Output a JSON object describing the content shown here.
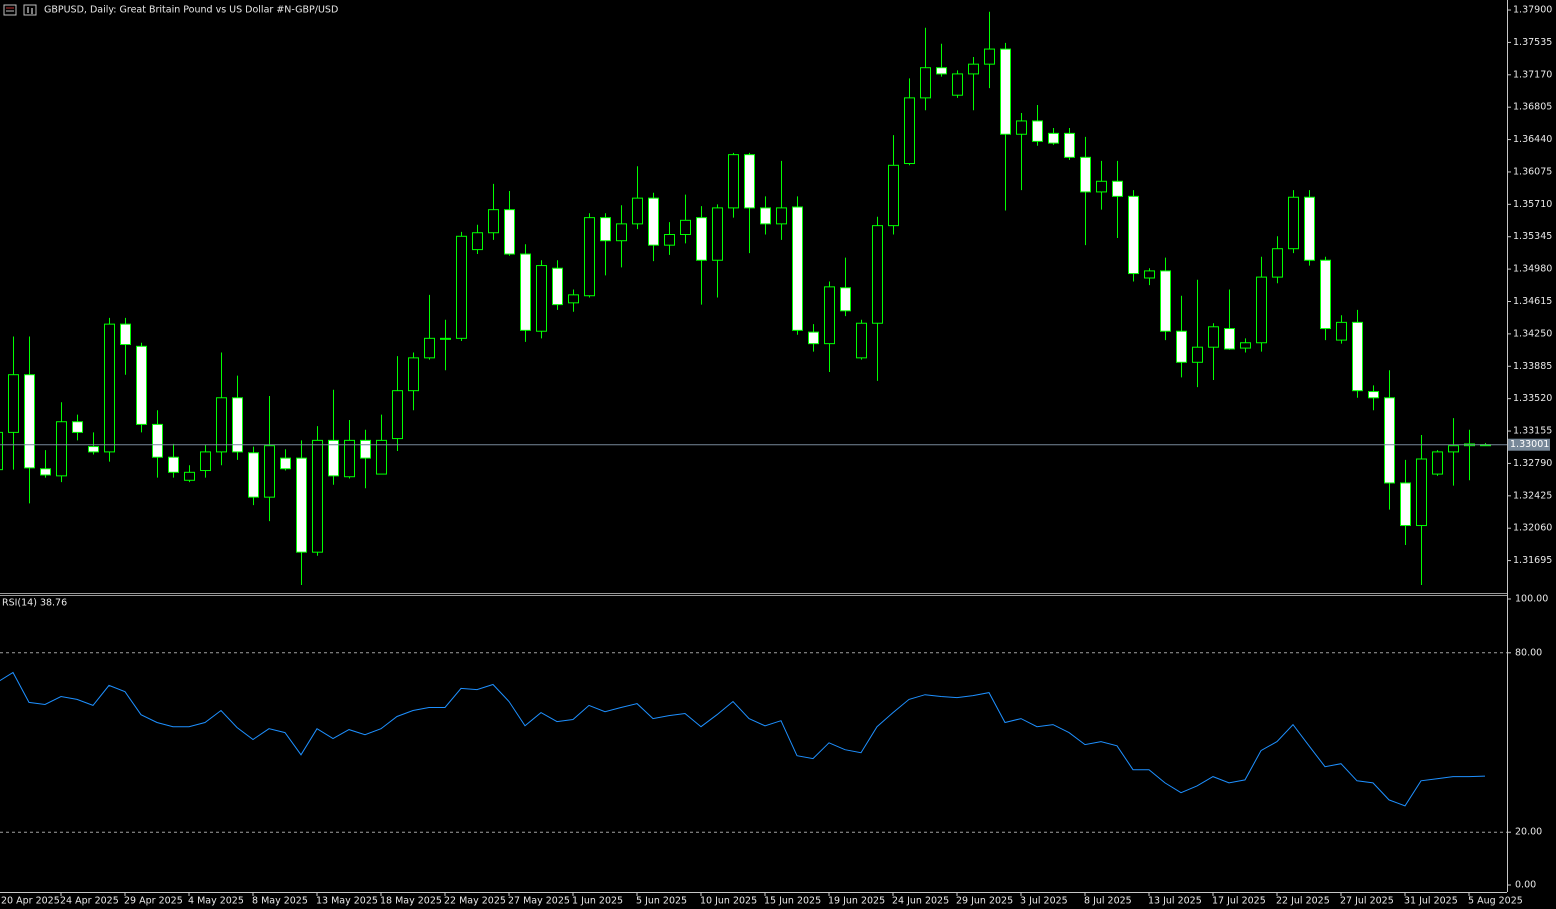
{
  "chart_data": [
    {
      "type": "candlestick",
      "title": "GBPUSD, Daily:  Great Britain Pound vs US Dollar #N-GBP/USD",
      "categories": [
        "20 Apr 2025",
        null,
        null,
        null,
        "24 Apr 2025",
        null,
        null,
        null,
        "29 Apr 2025",
        null,
        null,
        null,
        "4 May 2025",
        null,
        null,
        null,
        "8 May 2025",
        null,
        null,
        null,
        "13 May 2025",
        null,
        null,
        null,
        "18 May 2025",
        null,
        null,
        null,
        "22 May 2025",
        null,
        null,
        null,
        "27 May 2025",
        null,
        null,
        null,
        "1 Jun 2025",
        null,
        null,
        null,
        "5 Jun 2025",
        null,
        null,
        null,
        "10 Jun 2025",
        null,
        null,
        null,
        "15 Jun 2025",
        null,
        null,
        null,
        "19 Jun 2025",
        null,
        null,
        null,
        "24 Jun 2025",
        null,
        null,
        null,
        "29 Jun 2025",
        null,
        null,
        null,
        "3 Jul 2025",
        null,
        null,
        null,
        "8 Jul 2025",
        null,
        null,
        null,
        "13 Jul 2025",
        null,
        null,
        null,
        "17 Jul 2025",
        null,
        null,
        null,
        "22 Jul 2025",
        null,
        null,
        null,
        "27 Jul 2025",
        null,
        null,
        null,
        "31 Jul 2025",
        null,
        null,
        null,
        "5 Aug 2025",
        null
      ],
      "open": [
        1.3272,
        1.3314,
        1.3379,
        1.3273,
        1.3265,
        1.3326,
        1.3298,
        1.3292,
        1.3436,
        1.3411,
        1.3323,
        1.3286,
        1.326,
        1.3271,
        1.3292,
        1.3353,
        1.3291,
        1.3241,
        1.3285,
        1.3285,
        1.3179,
        1.3305,
        1.3264,
        1.3305,
        1.3267,
        1.3307,
        1.3361,
        1.3398,
        1.3419,
        1.342,
        1.352,
        1.3539,
        1.3565,
        1.3515,
        1.3428,
        1.3499,
        1.346,
        1.3468,
        1.3556,
        1.353,
        1.3549,
        1.3578,
        1.3525,
        1.3537,
        1.3556,
        1.3508,
        1.3567,
        1.3627,
        1.3567,
        1.3549,
        1.3568,
        1.3427,
        1.3414,
        1.3477,
        1.3398,
        1.3437,
        1.3547,
        1.3617,
        1.3691,
        1.3725,
        1.3694,
        1.3718,
        1.3729,
        1.3746,
        1.365,
        1.3665,
        1.3651,
        1.3651,
        1.3624,
        1.3585,
        1.3597,
        1.358,
        1.3488,
        1.3496,
        1.3428,
        1.3393,
        1.341,
        1.3431,
        1.3409,
        1.3415,
        1.3489,
        1.3521,
        1.3579,
        1.3508,
        1.3418,
        1.3438,
        1.336,
        1.3353,
        1.3257,
        1.3209,
        1.3267,
        1.3292,
        1.3299,
        1.33
      ],
      "high": [
        1.3328,
        1.3422,
        1.3422,
        1.3294,
        1.3348,
        1.3334,
        1.3314,
        1.3443,
        1.3443,
        1.3415,
        1.3339,
        1.3301,
        1.3277,
        1.33,
        1.3404,
        1.3378,
        1.3298,
        1.3355,
        1.3295,
        1.3305,
        1.3321,
        1.3362,
        1.3328,
        1.3317,
        1.3334,
        1.34,
        1.3404,
        1.3469,
        1.3441,
        1.354,
        1.3548,
        1.3594,
        1.3586,
        1.3526,
        1.3508,
        1.3508,
        1.3475,
        1.3561,
        1.3561,
        1.357,
        1.3614,
        1.3584,
        1.3551,
        1.3582,
        1.3569,
        1.3571,
        1.3629,
        1.3629,
        1.358,
        1.362,
        1.358,
        1.3436,
        1.3484,
        1.3511,
        1.3441,
        1.3557,
        1.3649,
        1.3713,
        1.377,
        1.3752,
        1.3722,
        1.3737,
        1.3788,
        1.3753,
        1.3674,
        1.3683,
        1.3657,
        1.3657,
        1.3647,
        1.362,
        1.362,
        1.3587,
        1.3499,
        1.3511,
        1.3468,
        1.3486,
        1.3437,
        1.3475,
        1.342,
        1.3512,
        1.3535,
        1.3587,
        1.3587,
        1.3512,
        1.3446,
        1.3452,
        1.3367,
        1.3384,
        1.3283,
        1.3311,
        1.3294,
        1.333,
        1.3317,
        1.3302
      ],
      "low": [
        1.3263,
        1.3272,
        1.3234,
        1.3263,
        1.3258,
        1.3305,
        1.3289,
        1.3281,
        1.3379,
        1.3314,
        1.3263,
        1.3263,
        1.3258,
        1.3263,
        1.3277,
        1.3283,
        1.3232,
        1.3214,
        1.3271,
        1.3142,
        1.3175,
        1.3255,
        1.3262,
        1.3251,
        1.3267,
        1.3293,
        1.3339,
        1.3396,
        1.3384,
        1.3417,
        1.3515,
        1.3531,
        1.3513,
        1.3416,
        1.342,
        1.3452,
        1.345,
        1.3466,
        1.3491,
        1.35,
        1.3543,
        1.3507,
        1.3514,
        1.3527,
        1.3458,
        1.3466,
        1.3556,
        1.3516,
        1.3537,
        1.3531,
        1.3424,
        1.3405,
        1.3382,
        1.3445,
        1.3396,
        1.3372,
        1.3537,
        1.3615,
        1.3677,
        1.3715,
        1.3691,
        1.3677,
        1.3702,
        1.3564,
        1.3587,
        1.3637,
        1.3638,
        1.3621,
        1.3525,
        1.3565,
        1.3533,
        1.3484,
        1.348,
        1.3418,
        1.3376,
        1.3365,
        1.3373,
        1.3407,
        1.3404,
        1.3405,
        1.3482,
        1.3516,
        1.3502,
        1.3418,
        1.3414,
        1.3353,
        1.3339,
        1.3227,
        1.3187,
        1.3142,
        1.3265,
        1.3254,
        1.326,
        1.3299
      ],
      "close": [
        1.3314,
        1.3379,
        1.3274,
        1.3266,
        1.3326,
        1.3314,
        1.3292,
        1.3436,
        1.3413,
        1.3323,
        1.3286,
        1.3269,
        1.3269,
        1.3292,
        1.3353,
        1.3292,
        1.3241,
        1.3299,
        1.3273,
        1.3179,
        1.3305,
        1.3265,
        1.3305,
        1.3285,
        1.3305,
        1.3361,
        1.3398,
        1.342,
        1.342,
        1.3535,
        1.3539,
        1.3565,
        1.3515,
        1.3429,
        1.3502,
        1.3458,
        1.3469,
        1.3556,
        1.353,
        1.3549,
        1.3578,
        1.3525,
        1.3537,
        1.3553,
        1.3508,
        1.3567,
        1.3627,
        1.3567,
        1.3549,
        1.3567,
        1.3429,
        1.3414,
        1.3478,
        1.3451,
        1.3437,
        1.3547,
        1.3615,
        1.3691,
        1.3725,
        1.3718,
        1.3718,
        1.3729,
        1.3746,
        1.365,
        1.3665,
        1.3642,
        1.364,
        1.3624,
        1.3585,
        1.3597,
        1.358,
        1.3493,
        1.3496,
        1.3428,
        1.3393,
        1.341,
        1.3433,
        1.3408,
        1.3415,
        1.3489,
        1.3521,
        1.3579,
        1.3508,
        1.3431,
        1.3438,
        1.3361,
        1.3353,
        1.3257,
        1.3209,
        1.3284,
        1.3292,
        1.3299,
        1.3301,
        1.33001
      ],
      "ylim": [
        1.31341,
        1.38013
      ],
      "yticks": [
        {
          "value": 1.379,
          "label": "1.37900"
        },
        {
          "value": 1.37535,
          "label": "1.37535"
        },
        {
          "value": 1.3717,
          "label": "1.37170"
        },
        {
          "value": 1.36805,
          "label": "1.36805"
        },
        {
          "value": 1.3644,
          "label": "1.36440"
        },
        {
          "value": 1.36075,
          "label": "1.36075"
        },
        {
          "value": 1.3571,
          "label": "1.35710"
        },
        {
          "value": 1.35345,
          "label": "1.35345"
        },
        {
          "value": 1.3498,
          "label": "1.34980"
        },
        {
          "value": 1.34615,
          "label": "1.34615"
        },
        {
          "value": 1.3425,
          "label": "1.34250"
        },
        {
          "value": 1.33885,
          "label": "1.33885"
        },
        {
          "value": 1.3352,
          "label": "1.33520"
        },
        {
          "value": 1.33155,
          "label": "1.33155"
        },
        {
          "value": 1.3279,
          "label": "1.32790"
        },
        {
          "value": 1.32425,
          "label": "1.32425"
        },
        {
          "value": 1.3206,
          "label": "1.32060"
        },
        {
          "value": 1.31695,
          "label": "1.31695"
        }
      ],
      "current_price": 1.33001,
      "wick_color": "#00ff00",
      "up_fill": "#000000",
      "down_fill": "#ffffff",
      "price_line_color": "#778899"
    },
    {
      "type": "line",
      "title": "RSI(14) 38.76",
      "color": "#1e90ff",
      "values": [
        70.1,
        73.4,
        63.4,
        62.7,
        65.4,
        64.4,
        62.4,
        69.1,
        67.0,
        59.3,
        56.7,
        55.3,
        55.3,
        56.7,
        60.7,
        55.0,
        51.0,
        54.6,
        53.3,
        45.9,
        54.6,
        51.3,
        54.3,
        52.6,
        54.6,
        58.7,
        60.7,
        61.7,
        61.7,
        68.1,
        67.7,
        69.4,
        63.7,
        55.6,
        60.0,
        57.0,
        57.7,
        62.4,
        60.3,
        61.7,
        63.0,
        58.0,
        59.0,
        59.7,
        55.3,
        59.3,
        63.7,
        58.0,
        55.6,
        57.3,
        45.6,
        44.6,
        49.9,
        47.6,
        46.6,
        55.3,
        60.0,
        64.4,
        66.0,
        65.4,
        65.0,
        65.7,
        66.7,
        56.7,
        58.0,
        55.3,
        56.0,
        53.3,
        49.3,
        50.3,
        48.9,
        40.9,
        40.9,
        36.5,
        33.2,
        35.5,
        38.6,
        36.5,
        37.5,
        47.3,
        50.3,
        56.0,
        48.9,
        41.9,
        42.9,
        37.2,
        36.5,
        30.8,
        28.8,
        37.2,
        37.9,
        38.6,
        38.6,
        38.76
      ],
      "ylim": [
        0,
        100
      ],
      "yticks": [
        {
          "value": 100,
          "label": "100.00"
        },
        {
          "value": 80,
          "label": "80.00"
        },
        {
          "value": 20,
          "label": "20.00"
        },
        {
          "value": 0,
          "label": "0.00"
        }
      ]
    }
  ]
}
